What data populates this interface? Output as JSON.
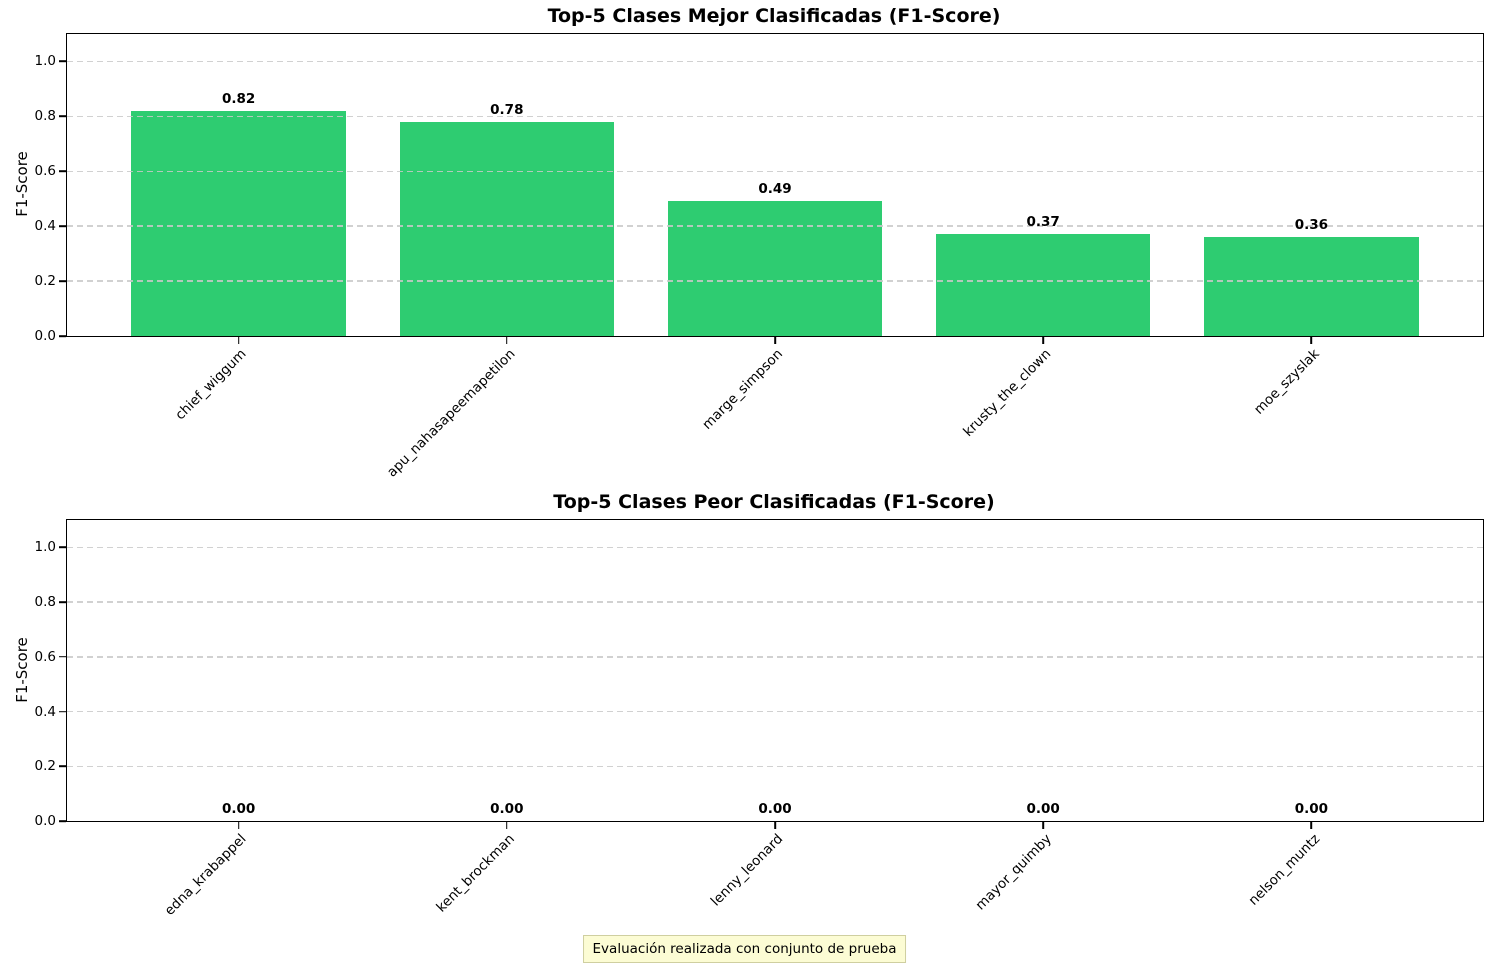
{
  "figure": {
    "background": "#ffffff",
    "footer_note": {
      "text": "Evaluación realizada con conjunto de prueba",
      "bg_color": "#fcfcd4",
      "border_color": "#cfcfa0"
    }
  },
  "chart_data": [
    {
      "type": "bar",
      "title": "Top-5 Clases Mejor Clasificadas (F1-Score)",
      "ylabel": "F1-Score",
      "xlabel": "",
      "categories": [
        "chief_wiggum",
        "apu_nahasapeemapetilon",
        "marge_simpson",
        "krusty_the_clown",
        "moe_szyslak"
      ],
      "values": [
        0.82,
        0.78,
        0.49,
        0.37,
        0.36
      ],
      "value_labels": [
        "0.82",
        "0.78",
        "0.49",
        "0.37",
        "0.36"
      ],
      "yticks": [
        0,
        0.2,
        0.4,
        0.6,
        0.8,
        1.0
      ],
      "ytick_labels": [
        "0.0",
        "0.2",
        "0.4",
        "0.6",
        "0.8",
        "1.0"
      ],
      "ylim": [
        0,
        1.1
      ],
      "grid": "horizontal-dashed",
      "legend": "none",
      "bar_color": "#2ecc71"
    },
    {
      "type": "bar",
      "title": "Top-5 Clases Peor Clasificadas (F1-Score)",
      "ylabel": "F1-Score",
      "xlabel": "",
      "categories": [
        "edna_krabappel",
        "kent_brockman",
        "lenny_leonard",
        "mayor_quimby",
        "nelson_muntz"
      ],
      "values": [
        0.0,
        0.0,
        0.0,
        0.0,
        0.0
      ],
      "value_labels": [
        "0.00",
        "0.00",
        "0.00",
        "0.00",
        "0.00"
      ],
      "yticks": [
        0,
        0.2,
        0.4,
        0.6,
        0.8,
        1.0
      ],
      "ytick_labels": [
        "0.0",
        "0.2",
        "0.4",
        "0.6",
        "0.8",
        "1.0"
      ],
      "ylim": [
        0,
        1.1
      ],
      "grid": "horizontal-dashed",
      "legend": "none",
      "bar_color": "#2ecc71"
    }
  ]
}
